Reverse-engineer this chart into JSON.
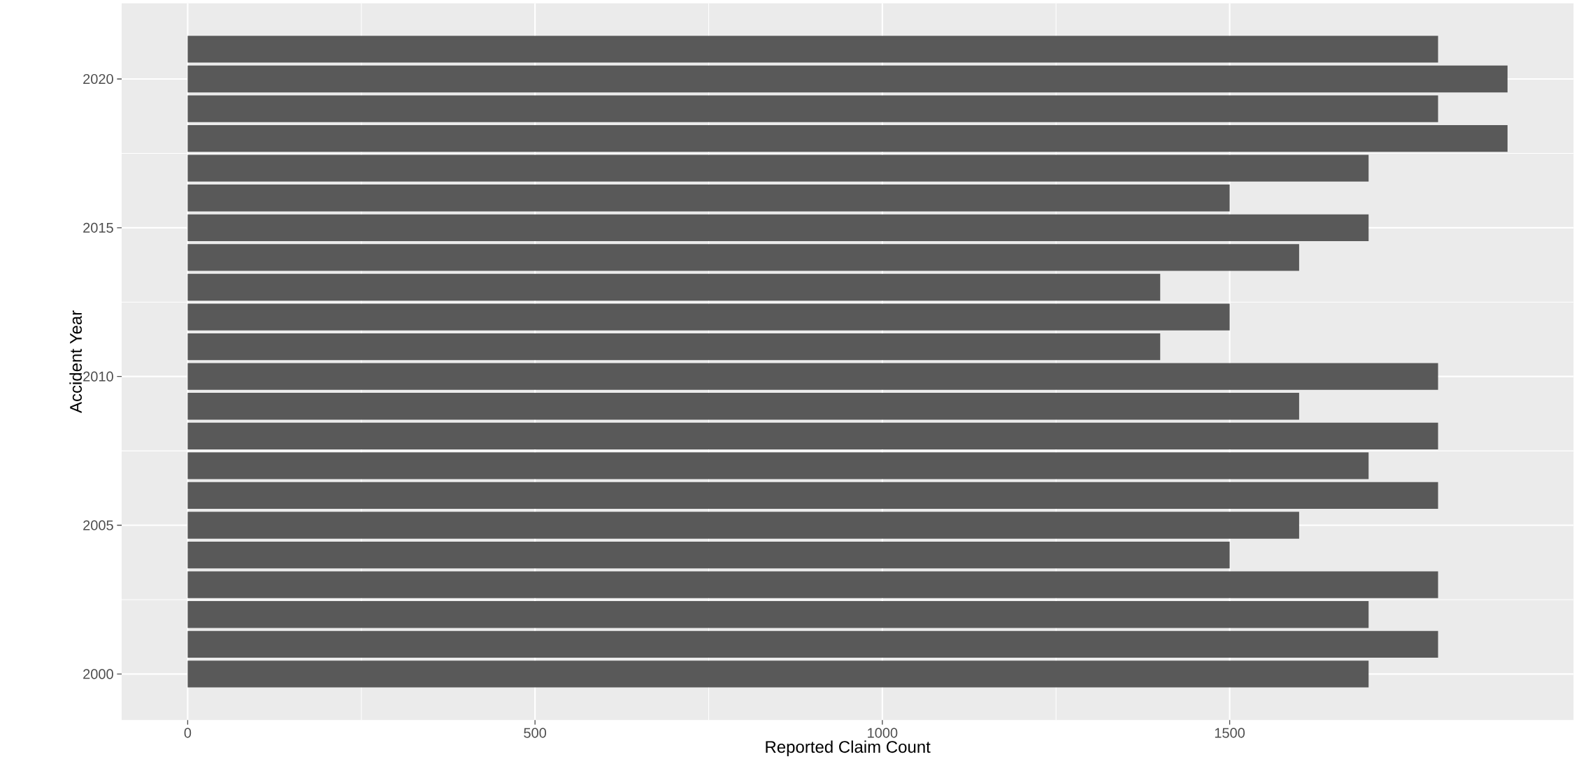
{
  "chart_data": {
    "type": "bar",
    "orientation": "horizontal",
    "xlabel": "Reported Claim Count",
    "ylabel": "Accident Year",
    "x": [
      2000,
      2001,
      2002,
      2003,
      2004,
      2005,
      2006,
      2007,
      2008,
      2009,
      2010,
      2011,
      2012,
      2013,
      2014,
      2015,
      2016,
      2017,
      2018,
      2019,
      2020,
      2021
    ],
    "values": [
      1700,
      1800,
      1700,
      1800,
      1500,
      1600,
      1800,
      1700,
      1800,
      1600,
      1800,
      1400,
      1500,
      1400,
      1600,
      1700,
      1500,
      1700,
      1900,
      1800,
      1900,
      1800
    ],
    "color": "#595959",
    "xlim": [
      -95,
      1995
    ],
    "xticks": [
      0,
      500,
      1000,
      1500
    ],
    "ylim": [
      1998.455,
      2022.545
    ],
    "yticks": [
      2000,
      2005,
      2010,
      2015,
      2020
    ],
    "grid": true
  }
}
